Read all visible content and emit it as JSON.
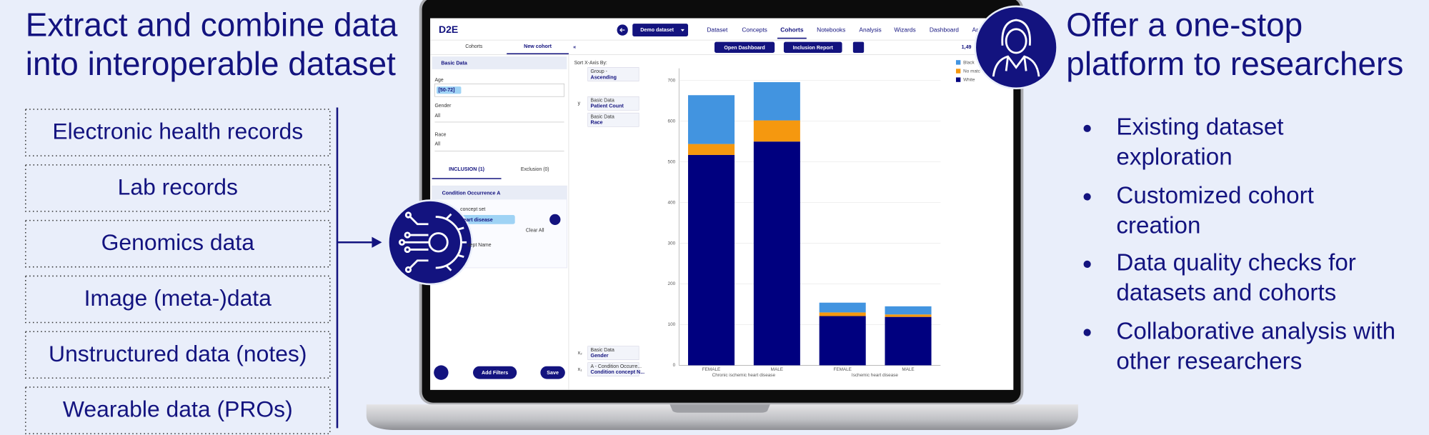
{
  "left": {
    "title": [
      "Extract and combine data",
      "into interoperable dataset"
    ],
    "sources": [
      "Electronic health records",
      "Lab records",
      "Genomics data",
      "Image (meta-)data",
      "Unstructured data (notes)",
      "Wearable data (PROs)"
    ]
  },
  "right": {
    "title": [
      "Offer a one-stop",
      "platform to researchers"
    ],
    "bullets": [
      [
        "Existing dataset",
        "exploration"
      ],
      [
        "Customized cohort",
        "creation"
      ],
      [
        "Data quality checks for",
        "datasets and cohorts"
      ],
      [
        "Collaborative analysis with",
        "other researchers"
      ]
    ]
  },
  "app": {
    "logo": "D2E",
    "dataset": "Demo dataset",
    "nav": [
      "Dataset",
      "Concepts",
      "Cohorts",
      "Notebooks",
      "Analysis",
      "Wizards",
      "Dashboard",
      "Ar"
    ],
    "tabs": [
      "Cohorts",
      "New cohort"
    ],
    "actions": [
      "Open Dashboard",
      "Inclusion Report"
    ],
    "count": "1,49",
    "filters": {
      "title": "Basic Data",
      "fields": [
        {
          "label": "Age",
          "value": "[50-72]"
        },
        {
          "label": "Gender",
          "value": "All"
        },
        {
          "label": "Race",
          "value": "All"
        }
      ],
      "tabs": [
        "INCLUSION (1)",
        "Exclusion (0)"
      ],
      "condition": {
        "title": "Condition Occurrence A",
        "concept_label": "concept set",
        "chip": "heart disease",
        "clear": "Clear All",
        "name_label": "cept Name"
      },
      "buttons": [
        "Add Filters",
        "Save"
      ]
    },
    "config": {
      "sort_label": "Sort X-Axis By:",
      "sort": [
        "Group -",
        "Ascending"
      ],
      "axes": [
        {
          "axis": "y",
          "lines": [
            "Basic Data",
            "Patient Count"
          ]
        },
        {
          "lines": [
            "Basic Data",
            "Race"
          ]
        },
        {
          "axis": "x₂",
          "lines": [
            "Basic Data",
            "Gender"
          ]
        },
        {
          "axis": "x₁",
          "lines": [
            "A - Condition Occurre...",
            "Condition concept N..."
          ]
        }
      ]
    },
    "chart": {
      "type": "bar",
      "stacked": true,
      "categories": [
        "FEMALE",
        "MALE",
        "FEMALE",
        "MALE"
      ],
      "groups": [
        "Chronic ischemic heart disease",
        "Ischemic heart disease"
      ],
      "series": [
        {
          "name": "Black",
          "color": "#4294e0",
          "values": [
            120,
            94,
            24,
            20
          ]
        },
        {
          "name": "No matc",
          "color": "#f5980f",
          "values": [
            27,
            52,
            9,
            6
          ]
        },
        {
          "name": "White",
          "color": "#00007f",
          "values": [
            517,
            550,
            121,
            119
          ]
        }
      ],
      "ylim": [
        0,
        730
      ],
      "yticks": [
        0,
        100,
        200,
        300,
        400,
        500,
        600,
        700
      ],
      "grid": true
    }
  }
}
